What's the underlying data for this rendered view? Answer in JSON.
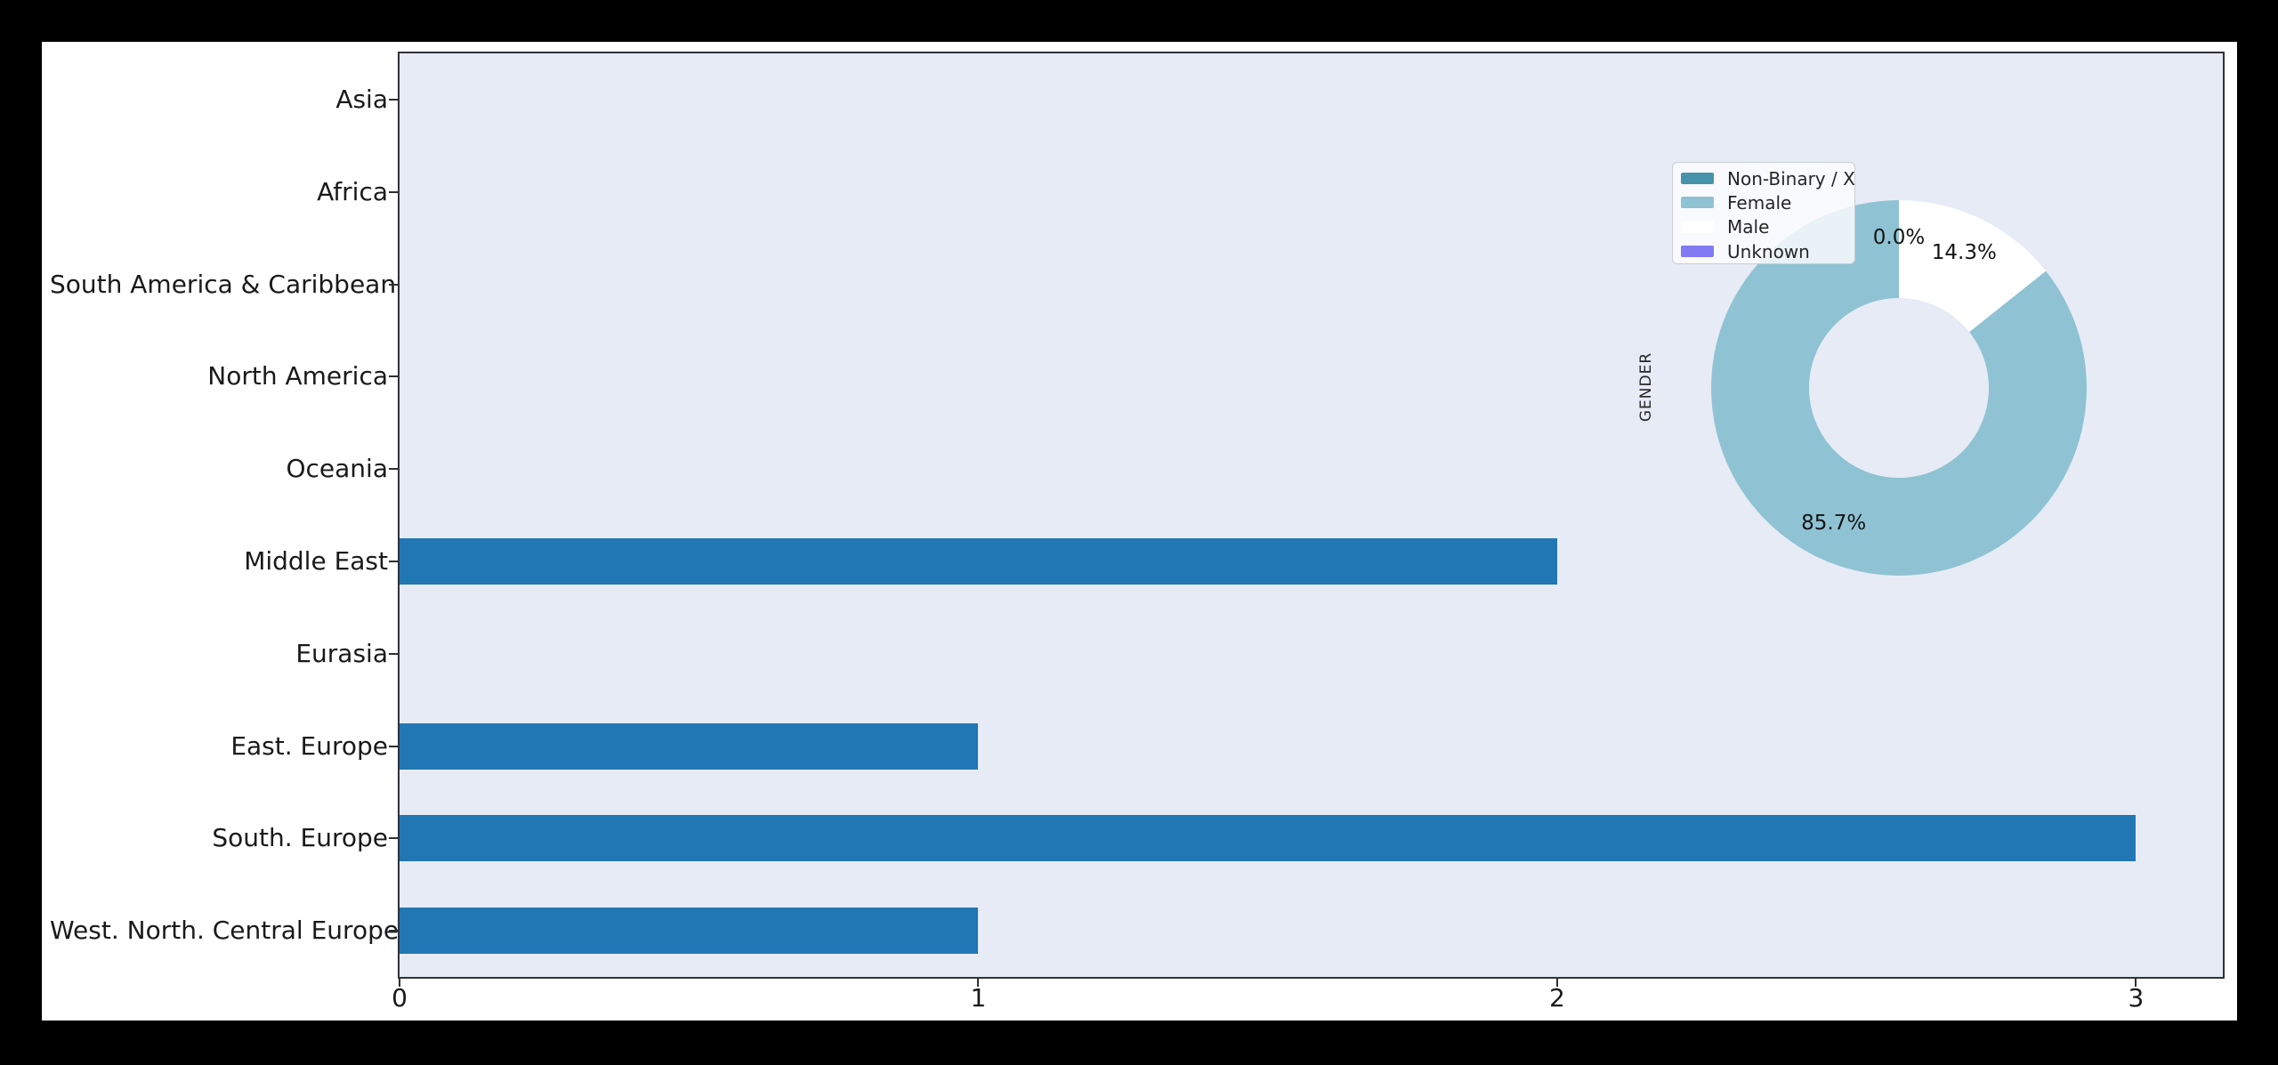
{
  "chart_data": [
    {
      "type": "bar",
      "orientation": "horizontal",
      "title": "",
      "categories": [
        "Asia",
        "Africa",
        "South America & Caribbean",
        "North America",
        "Oceania",
        "Middle East",
        "Eurasia",
        "East. Europe",
        "South. Europe",
        "West. North. Central Europe"
      ],
      "values": [
        0,
        0,
        0,
        0,
        0,
        2,
        0,
        1,
        3,
        1
      ],
      "xlabel": "",
      "ylabel": "",
      "x_tick_labels": [
        "0",
        "1",
        "2",
        "3"
      ],
      "x_tick_values": [
        0,
        1,
        2,
        3
      ],
      "xlim": [
        0,
        3.15
      ],
      "grid": false,
      "legend_position": "none",
      "bar_color": "#2177b4",
      "plot_background": "#e7ebf6"
    },
    {
      "type": "pie",
      "donut": true,
      "ylabel": "GENDER",
      "labels": [
        "Non-Binary / X",
        "Female",
        "Male",
        "Unknown"
      ],
      "values_pct": [
        0.0,
        85.7,
        14.3,
        0.0
      ],
      "pct_labels": [
        "0.0%",
        "85.7%",
        "14.3%",
        "0.0%"
      ],
      "colors": [
        "#4793ab",
        "#8fc3d3",
        "#ffffff",
        "#817af2"
      ],
      "start_angle_deg": 90,
      "direction": "counterclockwise",
      "inner_radius_ratio": 0.48,
      "legend_position": "upper left of pie"
    }
  ]
}
